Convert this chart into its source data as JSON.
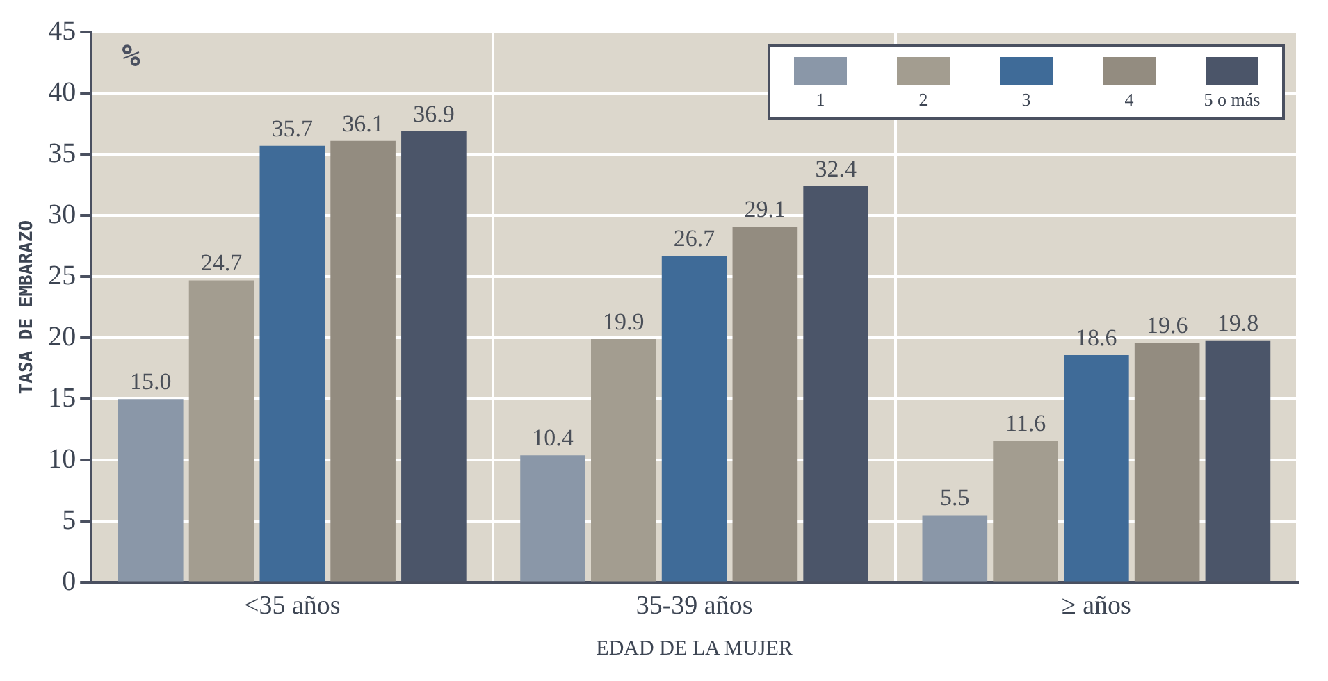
{
  "chart_data": {
    "type": "bar",
    "xlabel": "EDAD DE LA MUJER",
    "ylabel": "TASA DE EMBARAZO",
    "annotations": [
      "%"
    ],
    "categories": [
      "<35 años",
      "35-39 años",
      "≥ años"
    ],
    "series": [
      {
        "name": "1",
        "color": "#8a97a8",
        "values": [
          15.0,
          10.4,
          5.5
        ],
        "value_labels": [
          "15.0",
          "10.4",
          "5.5"
        ]
      },
      {
        "name": "2",
        "color": "#a39d90",
        "values": [
          24.7,
          19.9,
          11.6
        ],
        "value_labels": [
          "24.7",
          "19.9",
          "11.6"
        ]
      },
      {
        "name": "3",
        "color": "#3f6b98",
        "values": [
          35.7,
          26.7,
          18.6
        ],
        "value_labels": [
          "35.7",
          "26.7",
          "18.6"
        ]
      },
      {
        "name": "4",
        "color": "#938c80",
        "values": [
          36.1,
          29.1,
          19.6
        ],
        "value_labels": [
          "36.1",
          "29.1",
          "19.6"
        ]
      },
      {
        "name": "5 o más",
        "color": "#4b5569",
        "values": [
          36.9,
          32.4,
          19.8
        ],
        "value_labels": [
          "36.9",
          "32.4",
          "19.8"
        ]
      }
    ],
    "ylim": [
      0,
      45
    ],
    "yticks": [
      0,
      5,
      10,
      15,
      20,
      25,
      30,
      35,
      40,
      45
    ],
    "grid": true,
    "legend": "top right"
  }
}
